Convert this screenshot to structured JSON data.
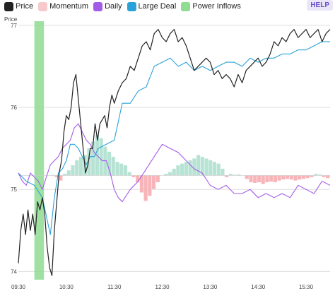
{
  "legend": {
    "items": [
      {
        "label": "Price",
        "color": "#222222"
      },
      {
        "label": "Momentum",
        "color": "#f6c9cc"
      },
      {
        "label": "Daily",
        "color": "#a35ce8"
      },
      {
        "label": "Large Deal",
        "color": "#2aa1d8"
      },
      {
        "label": "Power Inflows",
        "color": "#8fdc93"
      }
    ]
  },
  "help_label": "HELP",
  "chart_data": {
    "type": "line",
    "ylabel": "Price",
    "y_ticks": [
      74,
      75,
      76,
      77
    ],
    "x_ticks": [
      "09:30",
      "10:30",
      "11:30",
      "12:30",
      "13:30",
      "14:30",
      "15:30"
    ],
    "x_domain_minutes": [
      0,
      390
    ],
    "y_domain": [
      73.9,
      77.05
    ],
    "baseline": 75.17,
    "power_inflow_band": [
      20,
      32
    ],
    "colors": {
      "price": "#222222",
      "momentum_pos": "#b7e3d4",
      "momentum_neg": "#f8b5b9",
      "daily": "#a35ce8",
      "large_deal": "#2aa1d8",
      "power": "#8fdc93",
      "grid": "#dddddd"
    },
    "series": [
      {
        "name": "Price",
        "x": [
          0,
          3,
          6,
          9,
          12,
          15,
          18,
          21,
          24,
          27,
          30,
          33,
          36,
          39,
          42,
          45,
          48,
          51,
          54,
          57,
          60,
          63,
          66,
          69,
          72,
          75,
          78,
          81,
          84,
          87,
          90,
          93,
          96,
          99,
          102,
          105,
          108,
          111,
          114,
          117,
          120,
          125,
          130,
          135,
          140,
          145,
          150,
          155,
          160,
          165,
          170,
          175,
          180,
          185,
          190,
          195,
          200,
          205,
          210,
          215,
          220,
          225,
          230,
          235,
          240,
          245,
          250,
          255,
          260,
          265,
          270,
          275,
          280,
          285,
          290,
          295,
          300,
          305,
          310,
          315,
          320,
          325,
          330,
          335,
          340,
          345,
          350,
          355,
          360,
          365,
          370,
          375,
          380,
          385,
          390
        ],
        "values": [
          74.1,
          74.5,
          74.7,
          74.45,
          74.75,
          74.5,
          74.7,
          74.45,
          74.85,
          74.75,
          74.9,
          74.7,
          74.3,
          74.05,
          73.95,
          74.5,
          74.85,
          75.2,
          75.35,
          75.7,
          75.9,
          75.85,
          76.0,
          76.3,
          76.4,
          76.1,
          75.8,
          75.5,
          75.2,
          75.3,
          75.5,
          75.5,
          75.8,
          75.6,
          75.8,
          75.85,
          75.9,
          75.75,
          76.0,
          76.15,
          76.05,
          76.2,
          76.3,
          76.35,
          76.5,
          76.45,
          76.6,
          76.75,
          76.8,
          76.7,
          76.9,
          76.95,
          76.85,
          76.8,
          76.9,
          76.95,
          76.8,
          76.85,
          76.75,
          76.6,
          76.45,
          76.5,
          76.55,
          76.6,
          76.55,
          76.4,
          76.45,
          76.35,
          76.4,
          76.35,
          76.25,
          76.4,
          76.3,
          76.45,
          76.5,
          76.55,
          76.6,
          76.5,
          76.55,
          76.65,
          76.8,
          76.75,
          76.85,
          76.8,
          76.9,
          76.95,
          76.85,
          76.9,
          76.95,
          76.85,
          76.9,
          76.95,
          76.8,
          76.9,
          76.95
        ]
      },
      {
        "name": "Daily",
        "x": [
          0,
          5,
          10,
          15,
          20,
          25,
          30,
          35,
          40,
          45,
          50,
          55,
          60,
          65,
          70,
          75,
          80,
          85,
          90,
          95,
          100,
          105,
          110,
          115,
          120,
          125,
          130,
          140,
          150,
          160,
          170,
          180,
          190,
          200,
          210,
          220,
          230,
          240,
          250,
          260,
          270,
          280,
          290,
          300,
          310,
          320,
          330,
          340,
          350,
          360,
          370,
          380,
          390
        ],
        "values": [
          75.2,
          75.1,
          75.05,
          75.2,
          75.15,
          75.1,
          75.0,
          75.15,
          75.3,
          75.35,
          75.4,
          75.5,
          75.55,
          75.6,
          75.75,
          75.8,
          75.7,
          75.6,
          75.55,
          75.45,
          75.4,
          75.35,
          75.35,
          75.2,
          75.0,
          74.9,
          74.85,
          75.0,
          75.1,
          75.25,
          75.4,
          75.55,
          75.5,
          75.45,
          75.35,
          75.25,
          75.2,
          75.05,
          75.0,
          75.05,
          74.95,
          74.95,
          75.0,
          74.9,
          74.95,
          74.9,
          74.95,
          74.9,
          75.05,
          75.0,
          74.95,
          75.1,
          75.05
        ]
      },
      {
        "name": "Large Deal",
        "x": [
          0,
          10,
          20,
          30,
          40,
          45,
          50,
          55,
          60,
          65,
          70,
          75,
          80,
          85,
          90,
          95,
          100,
          110,
          120,
          130,
          140,
          150,
          160,
          170,
          180,
          190,
          200,
          210,
          220,
          230,
          240,
          250,
          260,
          270,
          280,
          290,
          300,
          310,
          320,
          330,
          340,
          350,
          360,
          370,
          380,
          390
        ],
        "values": [
          75.2,
          75.1,
          75.05,
          74.9,
          74.45,
          74.9,
          75.2,
          75.25,
          75.35,
          75.55,
          75.55,
          75.5,
          75.4,
          75.3,
          75.4,
          75.4,
          75.5,
          75.55,
          75.6,
          76.05,
          76.05,
          76.2,
          76.25,
          76.5,
          76.55,
          76.6,
          76.5,
          76.55,
          76.45,
          76.5,
          76.45,
          76.5,
          76.55,
          76.55,
          76.5,
          76.6,
          76.55,
          76.6,
          76.6,
          76.65,
          76.65,
          76.7,
          76.7,
          76.75,
          76.8,
          76.8
        ]
      },
      {
        "name": "Momentum",
        "values": [
          0,
          0,
          0,
          0,
          0,
          0,
          0,
          0,
          0.02,
          -0.05,
          -0.15,
          0.05,
          0.15,
          0.3,
          0.45,
          0.55,
          0.6,
          0.8,
          1.0,
          1.2,
          1.1,
          0.85,
          0.7,
          0.55,
          0.4,
          0.35,
          0.3,
          0.1,
          -0.05,
          -0.2,
          -0.5,
          -0.75,
          -0.6,
          -0.4,
          -0.2,
          0,
          0.05,
          0.1,
          0.2,
          0.3,
          0.35,
          0.4,
          0.45,
          0.5,
          0.6,
          0.55,
          0.5,
          0.45,
          0.4,
          0.35,
          0.2,
          -0.05,
          0.05,
          0.02,
          0.03,
          0,
          -0.1,
          -0.2,
          -0.22,
          -0.2,
          -0.25,
          -0.2,
          -0.18,
          -0.2,
          -0.15,
          -0.12,
          -0.1,
          -0.12,
          -0.15,
          -0.12,
          -0.1,
          -0.08,
          -0.05,
          0.05,
          0.03,
          -0.05,
          -0.08
        ]
      }
    ]
  }
}
